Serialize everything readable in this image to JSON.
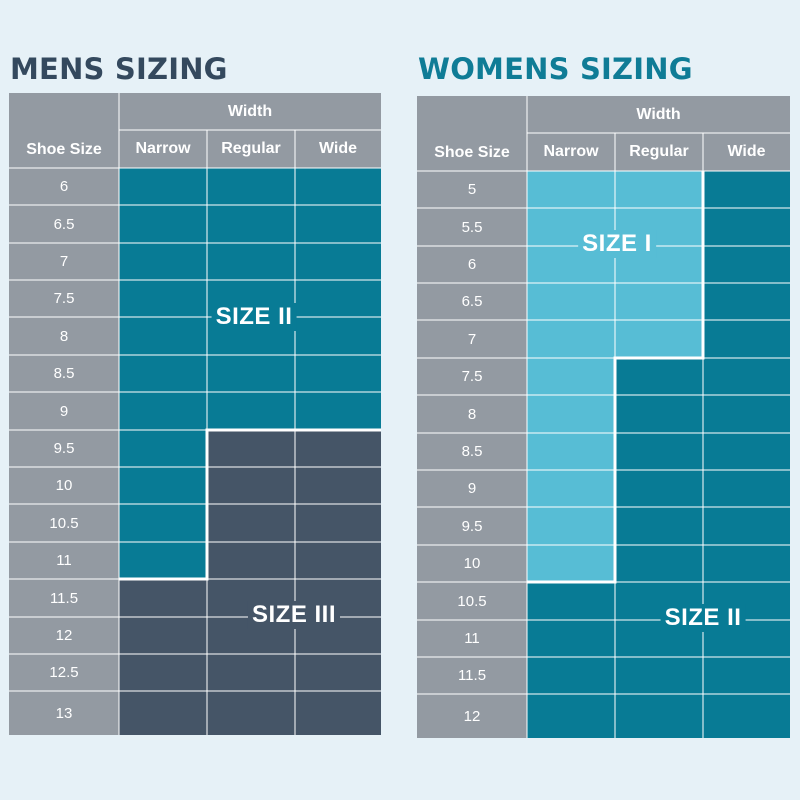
{
  "mens": {
    "title": "MENS SIZING",
    "title_color": "#34495e",
    "header": {
      "shoe_size": "Shoe Size",
      "width": "Width",
      "columns": [
        "Narrow",
        "Regular",
        "Wide"
      ]
    },
    "sizes": [
      "6",
      "6.5",
      "7",
      "7.5",
      "8",
      "8.5",
      "9",
      "9.5",
      "10",
      "10.5",
      "11",
      "11.5",
      "12",
      "12.5",
      "13"
    ],
    "zones": [
      {
        "label": "SIZE II",
        "color": "#087b95"
      },
      {
        "label": "SIZE III",
        "color": "#455567"
      }
    ]
  },
  "womens": {
    "title": "WOMENS SIZING",
    "title_color": "#0f7c96",
    "header": {
      "shoe_size": "Shoe Size",
      "width": "Width",
      "columns": [
        "Narrow",
        "Regular",
        "Wide"
      ]
    },
    "sizes": [
      "5",
      "5.5",
      "6",
      "6.5",
      "7",
      "7.5",
      "8",
      "8.5",
      "9",
      "9.5",
      "10",
      "10.5",
      "11",
      "11.5",
      "12"
    ],
    "zones": [
      {
        "label": "SIZE I",
        "color": "#57bdd5"
      },
      {
        "label": "SIZE II",
        "color": "#087b95"
      }
    ]
  }
}
